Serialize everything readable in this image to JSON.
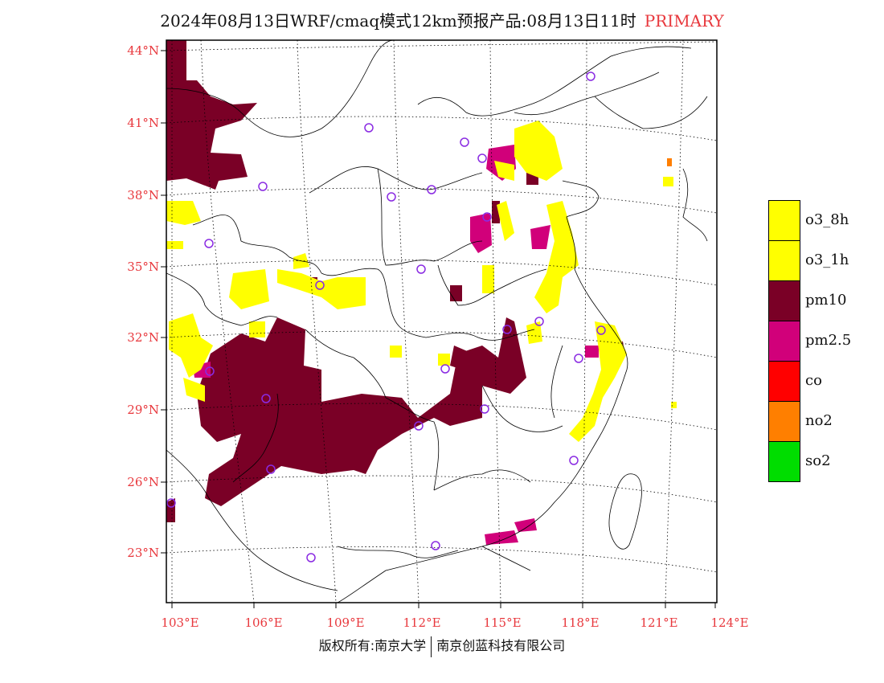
{
  "title": {
    "main": "2024年08月13日WRF/cmaq模式12km预报产品:08月13日11时",
    "tag": "PRIMARY"
  },
  "colors": {
    "label_red": "#e8383d",
    "o3": "#ffff00",
    "pm10": "#7a0026",
    "pm25": "#d1007a",
    "co": "#ff0000",
    "no2": "#ff7f00",
    "so2": "#00dd00",
    "site_marker": "#8a2be2"
  },
  "map": {
    "lat_labels": [
      "44°N",
      "41°N",
      "38°N",
      "35°N",
      "32°N",
      "29°N",
      "26°N",
      "23°N"
    ],
    "lon_labels": [
      "103°E",
      "106°E",
      "109°E",
      "112°E",
      "115°E",
      "118°E",
      "121°E",
      "124°E"
    ]
  },
  "legend": [
    {
      "label": "o3_8h",
      "color": "#ffff00"
    },
    {
      "label": "o3_1h",
      "color": "#ffff00"
    },
    {
      "label": "pm10",
      "color": "#7a0026"
    },
    {
      "label": "pm2.5",
      "color": "#d1007a"
    },
    {
      "label": "co",
      "color": "#ff0000"
    },
    {
      "label": "no2",
      "color": "#ff7f00"
    },
    {
      "label": "so2",
      "color": "#00dd00"
    }
  ],
  "copyright": {
    "left": "版权所有:南京大学",
    "right": "南京创蓝科技有限公司"
  }
}
